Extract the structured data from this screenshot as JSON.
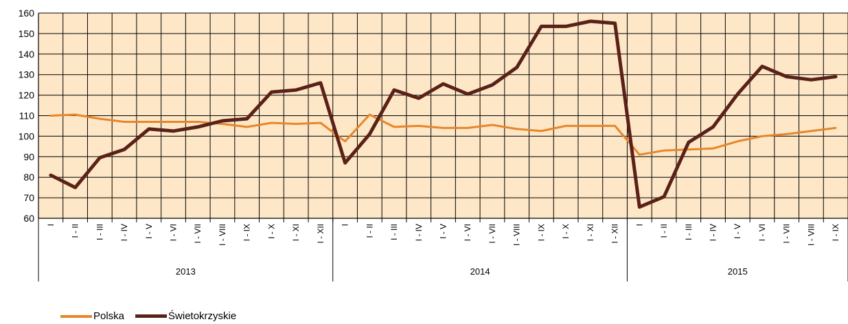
{
  "chart_data": {
    "type": "line",
    "title": "",
    "xlabel": "",
    "ylabel": "",
    "ylim": [
      60,
      160
    ],
    "yticks": [
      60,
      70,
      80,
      90,
      100,
      110,
      120,
      130,
      140,
      150,
      160
    ],
    "grid": true,
    "legend_position": "bottom-left",
    "categories": [
      "I",
      "I - II",
      "I - III",
      "I - IV",
      "I - V",
      "I - VI",
      "I - VII",
      "I - VIII",
      "I - IX",
      "I - X",
      "I - XI",
      "I - XII",
      "I",
      "I - II",
      "I - III",
      "I - IV",
      "I - V",
      "I - VI",
      "I - VII",
      "I - VIII",
      "I - IX",
      "I - X",
      "I - XI",
      "I - XII",
      "I",
      "I - II",
      "I - III",
      "I - IV",
      "I - V",
      "I - VI",
      "I - VII",
      "I - VIII",
      "I - IX"
    ],
    "groups": [
      {
        "label": "2013",
        "count": 12
      },
      {
        "label": "2014",
        "count": 12
      },
      {
        "label": "2015",
        "count": 9
      }
    ],
    "series": [
      {
        "name": "Polska",
        "color": "#e8852a",
        "values": [
          110,
          110.5,
          108.5,
          107,
          107,
          107,
          107,
          106,
          104.5,
          106.5,
          106,
          106.5,
          97.5,
          110.5,
          104.5,
          105,
          104,
          104,
          105.5,
          103.5,
          102.5,
          105,
          105,
          105,
          91,
          93,
          93.5,
          94,
          97.5,
          100,
          101,
          102.5,
          104
        ]
      },
      {
        "name": "Świetokrzyskie",
        "color": "#5a2118",
        "values": [
          81,
          75,
          89.5,
          93.5,
          103.5,
          102.5,
          104.5,
          107.5,
          108.5,
          121.5,
          122.5,
          126,
          87,
          101,
          122.5,
          118.5,
          125.5,
          120.5,
          125,
          133.5,
          153.5,
          153.5,
          156,
          155,
          65.5,
          70.5,
          97,
          104.5,
          120.5,
          134,
          129,
          127.5,
          129
        ]
      }
    ]
  }
}
